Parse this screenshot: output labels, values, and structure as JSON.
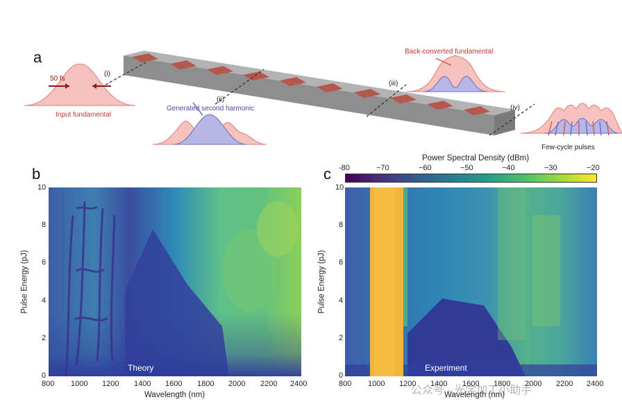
{
  "panel_a": {
    "label": "a",
    "input_pulse_width": "50 fs",
    "input_caption": "Input fundamental",
    "second_harmonic_caption": "Generated second harmonic",
    "back_converted_caption": "Back-converted fundamental",
    "few_cycle_caption": "Few-cycle pulses",
    "markers": [
      "(i)",
      "(ii)",
      "(iii)",
      "(iv)"
    ],
    "colors": {
      "fundamental": "#f4a6a0",
      "second_harmonic": "#8f8fd8",
      "waveguide": "#9a9a9a",
      "poling": "#b5584e"
    }
  },
  "colorbar": {
    "title": "Power Spectral Density (dBm)",
    "ticks": [
      "-80",
      "−70",
      "−60",
      "−50",
      "−40",
      "−30",
      "−20"
    ],
    "colormap": "viridis"
  },
  "chart_data": [
    {
      "type": "heatmap",
      "panel": "b",
      "annotation": "Theory",
      "xlabel": "Wavelength (nm)",
      "ylabel": "Pulse Energy (pJ)",
      "xlim": [
        800,
        2400
      ],
      "ylim": [
        0,
        10
      ],
      "xticks": [
        "800",
        "1000",
        "1200",
        "1400",
        "1600",
        "1800",
        "2000",
        "2200",
        "2400"
      ],
      "yticks": [
        "0",
        "2",
        "4",
        "6",
        "8",
        "10"
      ],
      "zlim": [
        -80,
        -20
      ]
    },
    {
      "type": "heatmap",
      "panel": "c",
      "annotation": "Experiment",
      "xlabel": "Wavelength (nm)",
      "ylabel": "Pulse Energy (pJ)",
      "xlim": [
        800,
        2400
      ],
      "ylim": [
        0,
        10
      ],
      "xticks": [
        "800",
        "1000",
        "1200",
        "1400",
        "1600",
        "1800",
        "2000",
        "2200",
        "2400"
      ],
      "yticks": [
        "0",
        "2",
        "4",
        "6",
        "8",
        "10"
      ],
      "zlim": [
        -80,
        -20
      ]
    }
  ],
  "watermark": "公众号 · 光学加工小助手"
}
